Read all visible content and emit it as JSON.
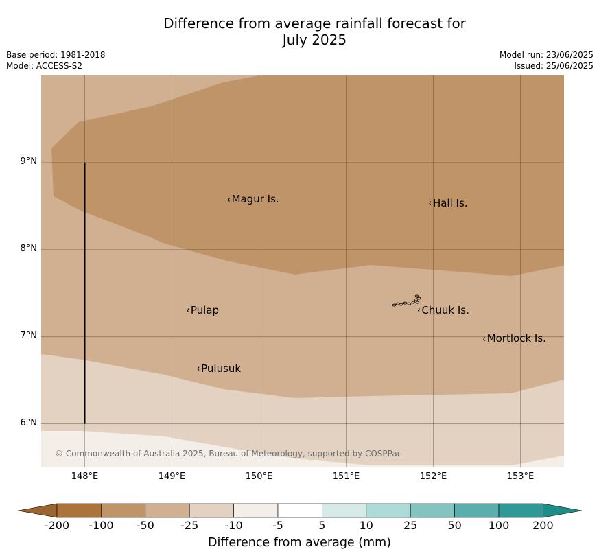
{
  "header": {
    "title_line1": "Difference from average rainfall forecast for",
    "title_line2": "July 2025",
    "base_period": "Base period: 1981-2018",
    "model": "Model: ACCESS-S2",
    "model_run": "Model run: 23/06/2025",
    "issued": "Issued: 25/06/2025"
  },
  "map": {
    "lon_range": [
      147.5,
      153.5
    ],
    "lat_range": [
      5.5,
      10.0
    ],
    "lat_ticks": [
      {
        "value": 9,
        "label": "9°N"
      },
      {
        "value": 8,
        "label": "8°N"
      },
      {
        "value": 7,
        "label": "7°N"
      },
      {
        "value": 6,
        "label": "6°N"
      }
    ],
    "lon_ticks": [
      {
        "value": 148,
        "label": "148°E"
      },
      {
        "value": 149,
        "label": "149°E"
      },
      {
        "value": 150,
        "label": "150°E"
      },
      {
        "value": 151,
        "label": "151°E"
      },
      {
        "value": 152,
        "label": "152°E"
      },
      {
        "value": 153,
        "label": "153°E"
      }
    ],
    "grid": true,
    "places": [
      {
        "name": "Magur Is.",
        "lon": 149.67,
        "lat": 8.57
      },
      {
        "name": "Hall Is.",
        "lon": 151.98,
        "lat": 8.53
      },
      {
        "name": "Pulap",
        "lon": 149.2,
        "lat": 7.3
      },
      {
        "name": "Chuuk Is.",
        "lon": 151.85,
        "lat": 7.3
      },
      {
        "name": "Mortlock Is.",
        "lon": 152.6,
        "lat": 6.97
      },
      {
        "name": "Pulusuk",
        "lon": 149.32,
        "lat": 6.63
      }
    ],
    "transect": {
      "lon": 148.0,
      "lat_from": 9.0,
      "lat_to": 6.0
    },
    "regions": [
      {
        "category": "-50 to -25",
        "color": "#d1b091"
      },
      {
        "category": "-100 to -50",
        "color": "#bf9469"
      },
      {
        "category": "-25 to -10",
        "color": "#e3d2c1"
      },
      {
        "category": "-10 to -5",
        "color": "#f3efe8"
      }
    ],
    "copyright": "© Commonwealth of Australia 2025, Bureau of Meteorology, supported by COSPPac"
  },
  "colorbar": {
    "title": "Difference from average (mm)",
    "labels": [
      "-200",
      "-100",
      "-50",
      "-25",
      "-10",
      "-5",
      "5",
      "10",
      "25",
      "50",
      "100",
      "200"
    ],
    "colors": [
      "#ac733a",
      "#bf9469",
      "#d1b091",
      "#e3d2c1",
      "#f3efe8",
      "#ffffff",
      "#d6ebe8",
      "#addbd7",
      "#84c4c0",
      "#5aaeac",
      "#2e9996"
    ],
    "under_color": "#9b6430",
    "over_color": "#1e8c87"
  }
}
